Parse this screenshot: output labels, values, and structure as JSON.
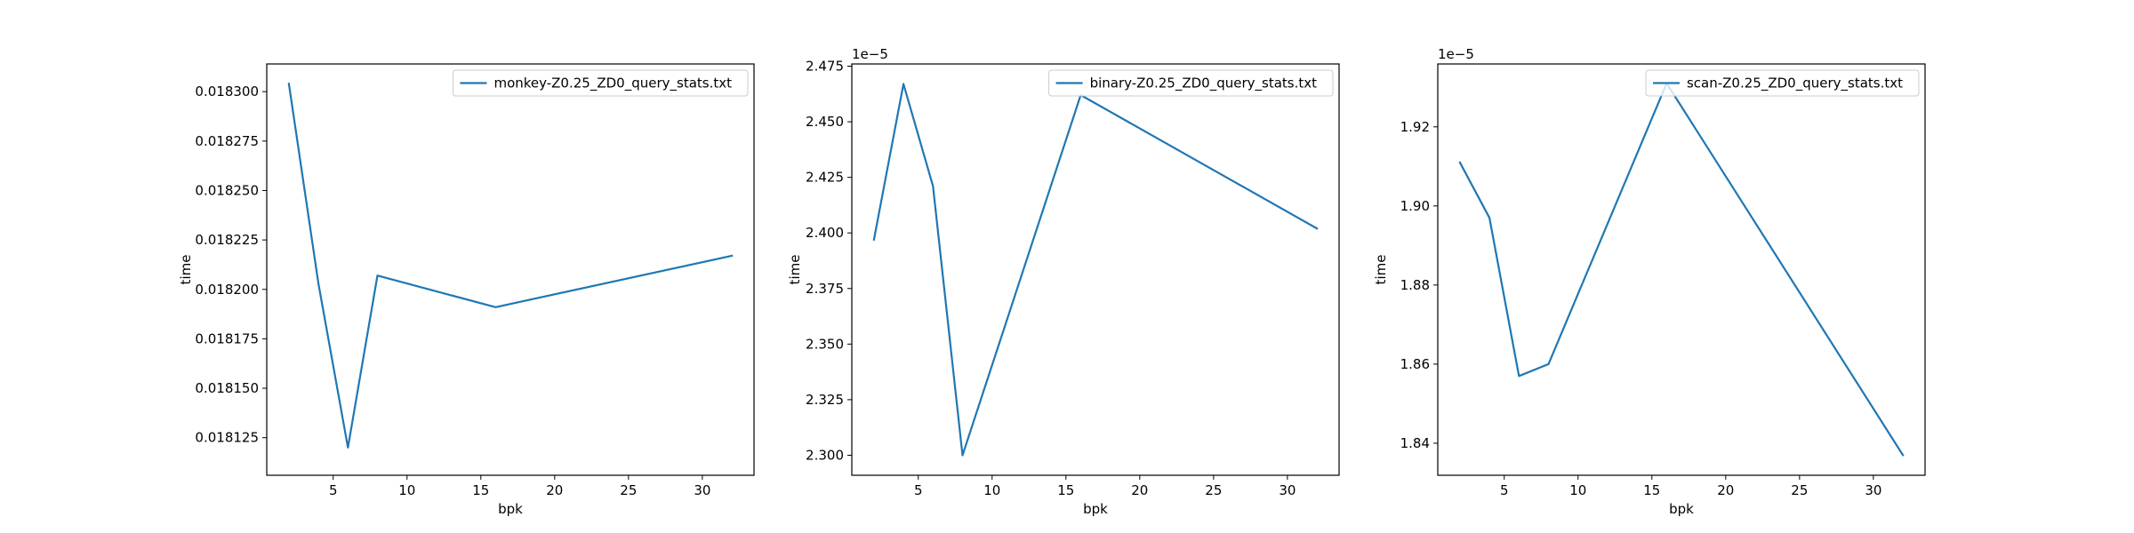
{
  "chart_data": [
    {
      "type": "line",
      "xlabel": "bpk",
      "ylabel": "time",
      "offset_label": "",
      "legend_position": "upper right",
      "grid": false,
      "xlim": [
        0.5,
        33.5
      ],
      "ylim": [
        0.018106,
        0.018314
      ],
      "xticks": [
        5,
        10,
        15,
        20,
        25,
        30
      ],
      "yticks": [
        0.018125,
        0.01815,
        0.018175,
        0.0182,
        0.018225,
        0.01825,
        0.018275,
        0.0183
      ],
      "ytick_labels": [
        "0.018125",
        "0.018150",
        "0.018175",
        "0.018200",
        "0.018225",
        "0.018250",
        "0.018275",
        "0.018300"
      ],
      "series": [
        {
          "name": "monkey-Z0.25_ZD0_query_stats.txt",
          "color": "#1f77b4",
          "x": [
            2,
            4,
            6,
            8,
            16,
            32
          ],
          "y": [
            0.018304,
            0.018203,
            0.01812,
            0.018207,
            0.018191,
            0.018217
          ]
        }
      ]
    },
    {
      "type": "line",
      "xlabel": "bpk",
      "ylabel": "time",
      "offset_label": "1e−5",
      "legend_position": "upper right",
      "grid": false,
      "xlim": [
        0.5,
        33.5
      ],
      "ylim": [
        2.291,
        2.476
      ],
      "xticks": [
        5,
        10,
        15,
        20,
        25,
        30
      ],
      "yticks": [
        2.3,
        2.325,
        2.35,
        2.375,
        2.4,
        2.425,
        2.45,
        2.475
      ],
      "ytick_labels": [
        "2.300",
        "2.325",
        "2.350",
        "2.375",
        "2.400",
        "2.425",
        "2.450",
        "2.475"
      ],
      "series": [
        {
          "name": "binary-Z0.25_ZD0_query_stats.txt",
          "color": "#1f77b4",
          "x": [
            2,
            4,
            6,
            8,
            16,
            32
          ],
          "y": [
            2.397,
            2.467,
            2.421,
            2.3,
            2.462,
            2.402
          ]
        }
      ]
    },
    {
      "type": "line",
      "xlabel": "bpk",
      "ylabel": "time",
      "offset_label": "1e−5",
      "legend_position": "upper right",
      "grid": false,
      "xlim": [
        0.5,
        33.5
      ],
      "ylim": [
        1.8319,
        1.9359
      ],
      "xticks": [
        5,
        10,
        15,
        20,
        25,
        30
      ],
      "yticks": [
        1.84,
        1.86,
        1.88,
        1.9,
        1.92
      ],
      "ytick_labels": [
        "1.84",
        "1.86",
        "1.88",
        "1.90",
        "1.92"
      ],
      "series": [
        {
          "name": "scan-Z0.25_ZD0_query_stats.txt",
          "color": "#1f77b4",
          "x": [
            2,
            4,
            6,
            8,
            16,
            32
          ],
          "y": [
            1.911,
            1.897,
            1.857,
            1.86,
            1.931,
            1.837
          ]
        }
      ]
    }
  ]
}
